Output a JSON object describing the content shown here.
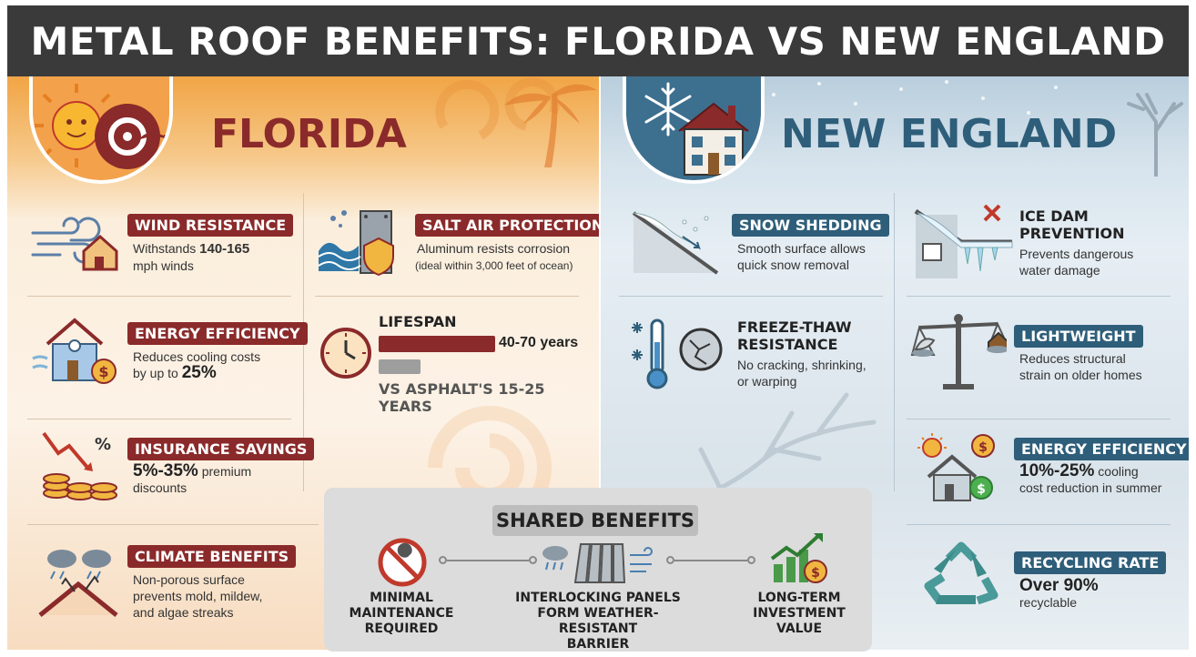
{
  "title": "METAL ROOF BENEFITS: FLORIDA VS NEW ENGLAND",
  "colors": {
    "florida_accent": "#8b2a2a",
    "new_england_accent": "#2e5e7a"
  },
  "florida": {
    "title": "FLORIDA",
    "wind": {
      "label": "WIND RESISTANCE",
      "desc_pre": "Withstands ",
      "desc_value": "140-165",
      "desc_post": "mph winds",
      "icon": "wind-house-icon"
    },
    "salt": {
      "label": "SALT AIR PROTECTION",
      "desc": "Aluminum resists corrosion",
      "note": "(ideal within 3,000 feet of ocean)",
      "icon": "wave-shield-icon"
    },
    "energy": {
      "label": "ENERGY EFFICIENCY",
      "desc": "Reduces cooling costs",
      "desc2_pre": "by up to ",
      "desc2_value": "25%",
      "icon": "house-dollar-icon"
    },
    "lifespan": {
      "label": "LIFESPAN",
      "metal_text": "40-70 years",
      "asphalt_text": "VS ASPHALT'S 15-25 YEARS",
      "metal_years": 70,
      "asphalt_years": 25,
      "icon": "clock-icon"
    },
    "insurance": {
      "label": "INSURANCE SAVINGS",
      "desc_value": "5%-35%",
      "desc_post": " premium",
      "desc2": "discounts",
      "icon": "coins-down-arrow-icon"
    },
    "climate": {
      "label": "CLIMATE BENEFITS",
      "lines": [
        "Non-porous surface",
        "prevents mold, mildew,",
        "and algae streaks"
      ],
      "icon": "rain-roof-icon"
    }
  },
  "new_england": {
    "title": "NEW ENGLAND",
    "snow": {
      "label": "SNOW SHEDDING",
      "lines": [
        "Smooth surface allows",
        "quick snow removal"
      ],
      "icon": "snow-roof-icon"
    },
    "ice": {
      "label_lines": [
        "ICE DAM",
        "PREVENTION"
      ],
      "lines": [
        "Prevents dangerous",
        "water damage"
      ],
      "icon": "icicle-roof-icon"
    },
    "freeze": {
      "label_lines": [
        "FREEZE-THAW",
        "RESISTANCE"
      ],
      "lines": [
        "No cracking, shrinking,",
        "or warping"
      ],
      "icon": "thermometer-icon"
    },
    "light": {
      "label": "LIGHTWEIGHT",
      "lines": [
        "Reduces structural",
        "strain on older homes"
      ],
      "icon": "scale-icon"
    },
    "energy": {
      "label": "ENERGY EFFICIENCY",
      "desc_value": "10%-25%",
      "desc_post": " cooling",
      "desc2": "cost reduction in summer",
      "icon": "sun-house-dollar-icon"
    },
    "recycle": {
      "label": "RECYCLING RATE",
      "desc_pre": "Over ",
      "desc_value": "90%",
      "desc2": "recyclable",
      "icon": "recycle-icon"
    }
  },
  "shared": {
    "title": "SHARED BENEFITS",
    "items": [
      {
        "lines": [
          "MINIMAL",
          "MAINTENANCE",
          "REQUIRED"
        ],
        "icon": "no-wrench-icon"
      },
      {
        "lines": [
          "INTERLOCKING PANELS",
          "FORM WEATHER-RESISTANT",
          "BARRIER"
        ],
        "icon": "metal-panels-icon"
      },
      {
        "lines": [
          "LONG-TERM",
          "INVESTMENT",
          "VALUE"
        ],
        "icon": "growth-chart-icon"
      }
    ]
  }
}
